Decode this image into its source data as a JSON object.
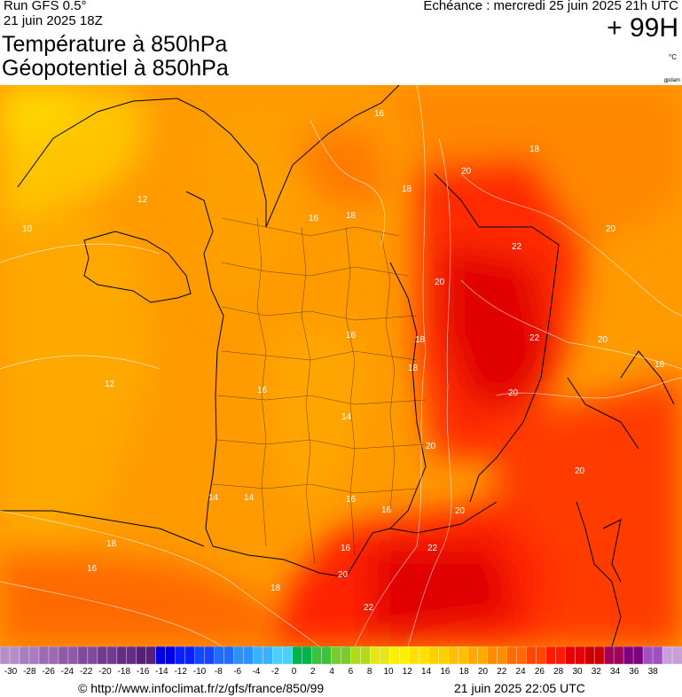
{
  "header": {
    "run": "Run GFS 0.5°",
    "run_date": "21 juin 2025 18Z",
    "title_line1": "Température à 850hPa",
    "title_line2": "Géopotentiel à 850hPa",
    "echeance": "Echéance : mercredi 25 juin 2025 21h UTC",
    "lead_time": "+ 99H",
    "unit": "°C",
    "credit_small": "gpdam"
  },
  "map": {
    "region": "France",
    "contour_labels": [
      "16",
      "18",
      "20",
      "12",
      "10",
      "18",
      "16",
      "18",
      "22",
      "20",
      "18",
      "16",
      "20",
      "12",
      "20",
      "18",
      "16",
      "14",
      "22",
      "20",
      "18",
      "20",
      "16",
      "14",
      "14",
      "16",
      "18",
      "20",
      "20",
      "16",
      "22",
      "18",
      "16",
      "20",
      "22"
    ]
  },
  "color_scale": {
    "ticks": [
      "-30",
      "-28",
      "-26",
      "-24",
      "-22",
      "-20",
      "-18",
      "-16",
      "-14",
      "-12",
      "-10",
      "-8",
      "-6",
      "-4",
      "-2",
      "0",
      "2",
      "4",
      "6",
      "8",
      "10",
      "12",
      "14",
      "16",
      "18",
      "20",
      "22",
      "24",
      "26",
      "28",
      "30",
      "32",
      "34",
      "36",
      "38"
    ],
    "colors": [
      "#b58ec6",
      "#a97cbd",
      "#9c6ab3",
      "#8f59a8",
      "#82489c",
      "#743a90",
      "#652c84",
      "#571f78",
      "#0000e6",
      "#0a1fff",
      "#1446ff",
      "#1f6cff",
      "#2b91ff",
      "#38b2ff",
      "#48d0ff",
      "#00b34a",
      "#3cc23c",
      "#7acc2e",
      "#b3d91f",
      "#e6e61a",
      "#fff000",
      "#ffe100",
      "#ffd000",
      "#ffbf00",
      "#ffaa00",
      "#ff8c00",
      "#ff6a00",
      "#ff4500",
      "#ff1a00",
      "#e60000",
      "#cc0000",
      "#a0005a",
      "#800080",
      "#9f4fc0",
      "#c8a0d8"
    ]
  },
  "footer": {
    "copyright": "© http://www.infoclimat.fr/z/gfs/france/850/99",
    "generated": "21 juin 2025 22:05 UTC"
  }
}
